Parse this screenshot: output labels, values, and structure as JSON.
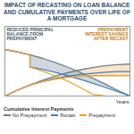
{
  "chart_data": {
    "type": "line",
    "title": "Impact of Recasting on Loan Balance and Cumulative Payments Over Life of a Mortgage",
    "x_label": "Years",
    "legend_title": "Cumulative Interest Payments",
    "annotations": [
      "Prepayment Interest Savings After Recast",
      "Reduced Principal Balance From Prepayment"
    ],
    "x": [
      0,
      3,
      6,
      6,
      9,
      12,
      15,
      18,
      21,
      24,
      27,
      30
    ],
    "series": [
      {
        "name": "No Prepayment",
        "color": "#6f8193",
        "values": [
          0,
          10,
          19,
          19,
          27,
          34,
          40,
          45,
          49,
          52,
          54,
          55
        ],
        "balance": [
          80,
          76,
          71,
          71,
          65,
          58,
          50,
          41,
          31,
          21,
          10,
          0
        ]
      },
      {
        "name": "Recast",
        "color": "#3f7fc0",
        "values": [
          0,
          10,
          19,
          19,
          25,
          30,
          34,
          37,
          39,
          41,
          42,
          42
        ],
        "balance": [
          80,
          76,
          71,
          50,
          46,
          41,
          35,
          29,
          22,
          15,
          8,
          0
        ]
      },
      {
        "name": "Prepayment",
        "color": "#f0a030",
        "values": [
          0,
          10,
          19,
          19,
          25,
          29,
          32,
          34,
          35,
          35,
          35,
          35
        ],
        "balance": [
          80,
          76,
          71,
          50,
          43,
          35,
          26,
          15,
          3,
          0,
          null,
          null
        ]
      }
    ],
    "xlim": [
      0,
      30
    ],
    "ylim": [
      0,
      120
    ],
    "xticks": [],
    "yticks": [],
    "tick_labels": false,
    "grid": false,
    "legend": "bottom"
  }
}
